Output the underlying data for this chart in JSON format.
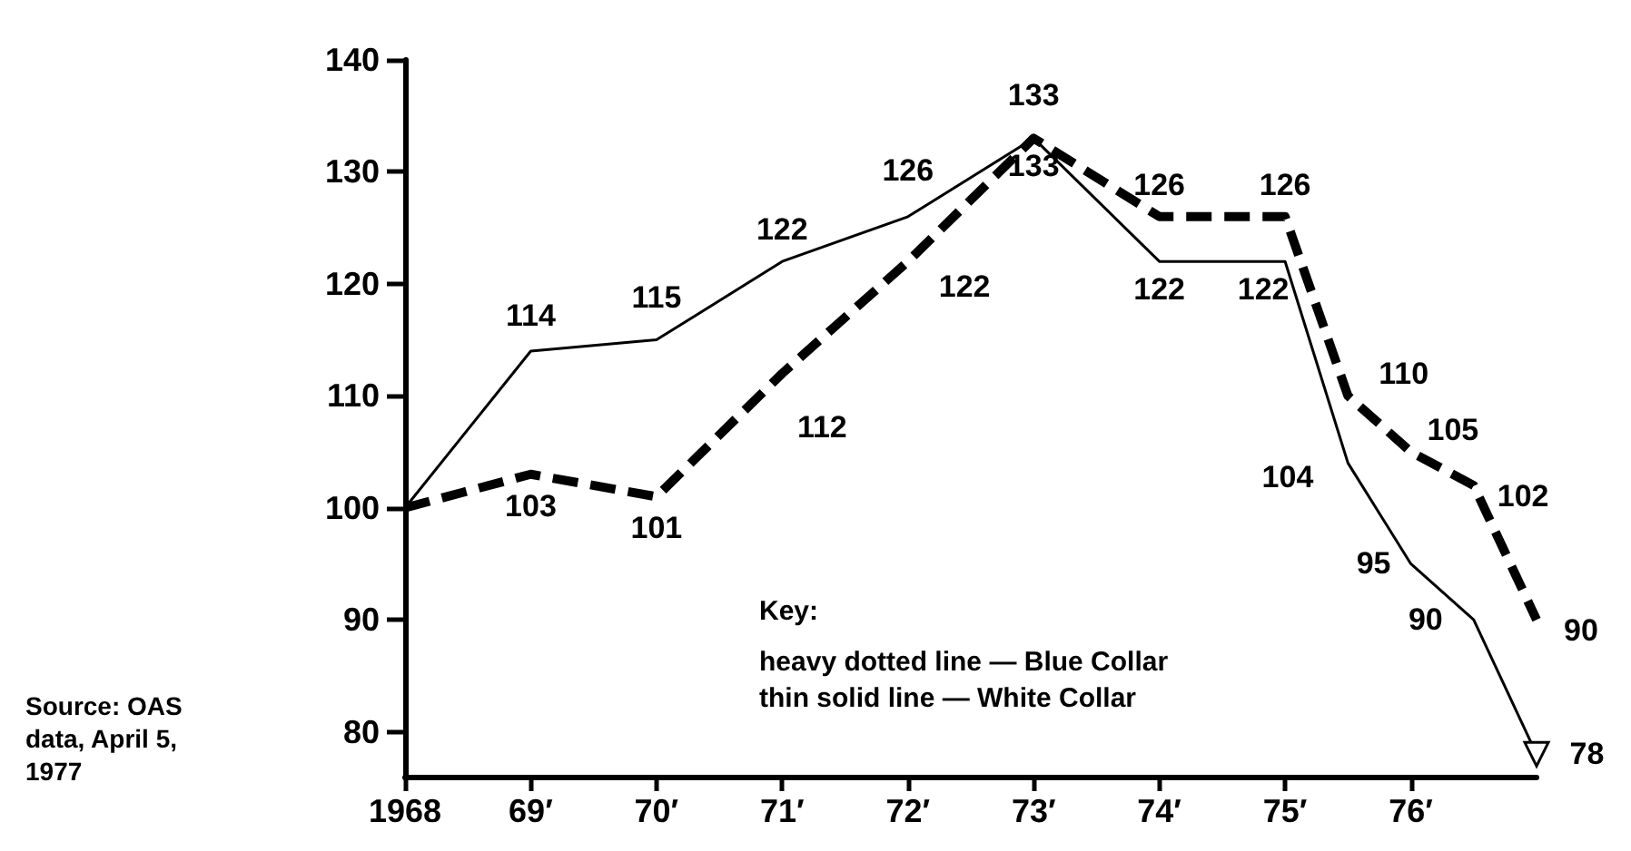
{
  "chart_data": {
    "type": "line",
    "categories": [
      "1968",
      null,
      "69′",
      null,
      "70′",
      null,
      "71′",
      null,
      "72′",
      null,
      "73′",
      null,
      "74′",
      null,
      "75′",
      null,
      "76′",
      null,
      null
    ],
    "ylim": [
      76,
      140
    ],
    "yticks": [
      80,
      90,
      100,
      110,
      120,
      130,
      140
    ],
    "grid": false,
    "series": [
      {
        "color": "#000000",
        "line_style": "dashed",
        "marker": "none",
        "values": [
          100,
          null,
          103,
          null,
          101,
          null,
          112,
          null,
          122,
          null,
          133,
          null,
          126,
          null,
          126,
          110,
          105,
          102,
          90
        ],
        "value_labels": [
          null,
          null,
          "103",
          null,
          "101",
          null,
          "112",
          null,
          "122",
          null,
          "133",
          null,
          "126",
          null,
          "126",
          "110",
          "105",
          "102",
          "90"
        ]
      },
      {
        "color": "#000000",
        "line_style": "solid",
        "marker": "none",
        "values": [
          100,
          null,
          114,
          null,
          115,
          null,
          122,
          null,
          126,
          null,
          133,
          null,
          122,
          null,
          122,
          104,
          95,
          90,
          78
        ],
        "value_labels": [
          null,
          null,
          "114",
          null,
          "115",
          null,
          "122",
          null,
          "126",
          null,
          "133",
          null,
          "122",
          null,
          "122",
          "104",
          "95",
          "90",
          "78"
        ]
      }
    ],
    "annotations": [
      "Key:",
      "heavy dotted line — Blue Collar",
      "thin solid line — White Collar",
      "Source: OAS data, April 5, 1977"
    ]
  }
}
